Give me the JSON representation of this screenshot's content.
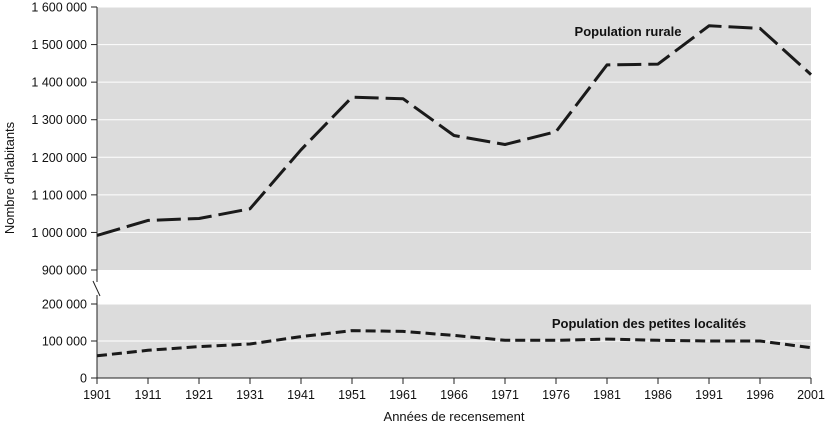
{
  "chart_data": {
    "type": "line",
    "xlabel": "Années de recensement",
    "ylabel": "Nombre d'habitants",
    "x": [
      1901,
      1911,
      1921,
      1931,
      1941,
      1951,
      1961,
      1966,
      1971,
      1976,
      1981,
      1986,
      1991,
      1996,
      2001
    ],
    "x_tick_labels": [
      "1901",
      "1911",
      "1921",
      "1931",
      "1941",
      "1951",
      "1961",
      "1966",
      "1971",
      "1976",
      "1981",
      "1986",
      "1991",
      "1996",
      "2001"
    ],
    "axis_break": true,
    "upper_panel": {
      "ylim": [
        900000,
        1600000
      ],
      "y_ticks": [
        900000,
        1000000,
        1100000,
        1200000,
        1300000,
        1400000,
        1500000,
        1600000
      ],
      "y_tick_labels": [
        "900 000",
        "1 000 000",
        "1 100 000",
        "1 200 000",
        "1 300 000",
        "1 400 000",
        "1 500 000",
        "1 600 000"
      ],
      "grid": true
    },
    "lower_panel": {
      "ylim": [
        0,
        200000
      ],
      "y_ticks": [
        0,
        100000,
        200000
      ],
      "y_tick_labels": [
        "0",
        "100 000",
        "200 000"
      ],
      "grid": true
    },
    "series": [
      {
        "name": "Population rurale",
        "panel": "upper",
        "values": [
          992000,
          1032000,
          1037000,
          1063000,
          1220000,
          1360000,
          1356000,
          1258000,
          1234000,
          1268000,
          1446000,
          1448000,
          1550000,
          1543000,
          1420000
        ]
      },
      {
        "name": "Population des petites localités",
        "panel": "lower",
        "values": [
          60000,
          75000,
          85000,
          92000,
          112000,
          128000,
          126000,
          115000,
          102000,
          102000,
          105000,
          102000,
          100000,
          100000,
          82000
        ]
      }
    ],
    "style": {
      "background": "#ffffff",
      "panel_fill": "#dcdcdc",
      "grid_color": "#ffffff",
      "line_color": "#1a1a1a",
      "axis_color": "#222222"
    }
  }
}
